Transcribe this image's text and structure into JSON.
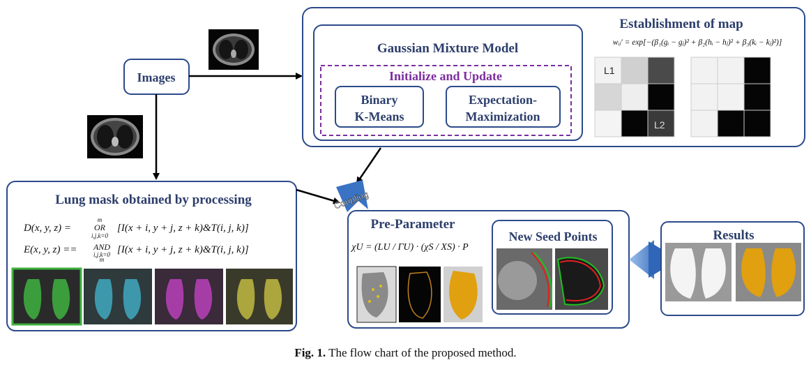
{
  "images": {
    "label": "Images"
  },
  "gmm": {
    "title": "Gaussian Mixture Model",
    "init_update": "Initialize and Update",
    "binary_kmeans_line1": "Binary",
    "binary_kmeans_line2": "K-Means",
    "em_line1": "Expectation-",
    "em_line2": "Maximization"
  },
  "map": {
    "title": "Establishment of map",
    "formula": "wᵢⱼ′ = exp[−(β₁(gᵢ − gⱼ)² + β₂(hᵢ − hⱼ)² + β₃(kᵢ − kⱼ)²)]",
    "grid_label_1": "L1",
    "grid_label_2": "L2"
  },
  "lung": {
    "title": "Lung mask obtained by processing",
    "eq1": "D(x, y, z) = OR[I(x + i, y + j, z + k)&T(i, j, k)]",
    "eq1_op": "OR",
    "eq1_sub": "i,j,k=0",
    "eq1_sup": "m",
    "eq2": "E(x, y, z) == AND[I(x + i, y + j, z + k)&T(i, j, k)]",
    "eq2_op": "AND",
    "eq2_sub": "i,j,k=0",
    "eq2_sup": "m"
  },
  "coupling": {
    "label": "Coupling"
  },
  "preparam": {
    "title": "Pre-Parameter",
    "formula": "χU = (LU / ΓU) · (χS / XS) · P"
  },
  "seeds": {
    "title": "New Seed Points"
  },
  "results": {
    "title": "Results"
  },
  "caption": {
    "fig": "Fig. 1.",
    "text": "The flow chart of the proposed method."
  },
  "colors": {
    "box_border": "#2c4a8a",
    "title_text": "#2c3e6b",
    "init_update": "#7b2d9e",
    "dashed_border": "#7b2d9e",
    "big_arrow": "#3a73c4",
    "mask_green": "#3fb23f",
    "mask_cyan": "#3fa3b8",
    "mask_magenta": "#b23fb2",
    "mask_yellow": "#b8b23f",
    "lung_gold": "#e0a010"
  }
}
